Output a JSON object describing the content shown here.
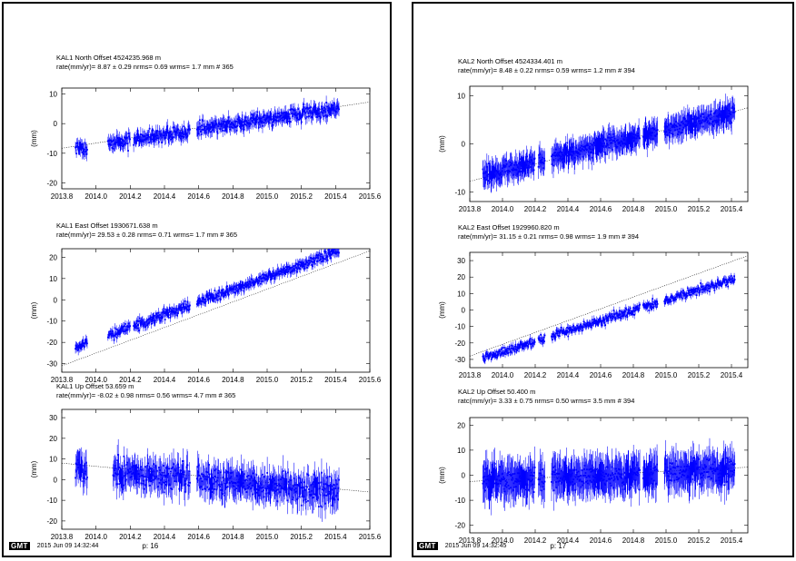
{
  "panels": [
    {
      "footer": {
        "logo": "GMT",
        "timestamp": "2015 Jun 09 14:32:44",
        "page": "p: 16"
      },
      "charts": [
        {
          "line1": "KAL1  North Offset   4524235.968 m",
          "line2": "rate(mm/yr)=    8.87 ±  0.29  nrms=  0.69  wrms=   1.7 mm # 365"
        },
        {
          "line1": "KAL1  East Offset   1930671.638 m",
          "line2": "rate(mm/yr)=   29.53 ±  0.28  nrms=  0.71  wrms=   1.7 mm # 365"
        },
        {
          "line1": "KAL1  Up Offset        53.659 m",
          "line2": "rate(mm/yr)=   -8.02 ±  0.98  nrms= 0.56  wrms=   4.7 mm # 365"
        }
      ]
    },
    {
      "footer": {
        "logo": "GMT",
        "timestamp": "2015 Jun 09 14:32:45",
        "page": "p: 17"
      },
      "charts": [
        {
          "line1": "KAL2  North Offset   4524334.401 m",
          "line2": "rate(mm/yr)=    8.48 ±  0.22  nrms=  0.59  wrms=   1.2 mm # 394"
        },
        {
          "line1": "KAL2  East Offset   1929960.820 m",
          "line2": "rate(mm/yr)=   31.15 ±  0.21  nrms=  0.98  wrms=   1.9 mm # 394"
        },
        {
          "line1": "KAL2  Up Offset        50.400 m",
          "line2": "ratc(mm/yr)=    3.33 ±  0.75  nrms=  0.50  wrms=   3.5 mm # 394"
        }
      ]
    }
  ],
  "chart_data": [
    {
      "type": "scatter",
      "station": "KAL1",
      "component": "North",
      "ylabel": "(mm)",
      "xlim": [
        2013.8,
        2015.6
      ],
      "ylim": [
        -22,
        12
      ],
      "xticks": [
        2013.8,
        2014.0,
        2014.2,
        2014.4,
        2014.6,
        2014.8,
        2015.0,
        2015.2,
        2015.4,
        2015.6
      ],
      "yticks": [
        -20,
        -10,
        0,
        10
      ],
      "trend": {
        "x": [
          2013.8,
          2015.6
        ],
        "y": [
          -8.3,
          7.3
        ]
      },
      "segments": [
        [
          2013.88,
          2013.95
        ],
        [
          2014.07,
          2014.2
        ],
        [
          2014.22,
          2014.55
        ],
        [
          2014.59,
          2015.42
        ]
      ],
      "rate": 8.87,
      "offset": -2.0,
      "t0": 2014.6,
      "scatter": 1.7,
      "errbar": 2.0,
      "n": 365,
      "color": "#0000ff"
    },
    {
      "type": "scatter",
      "station": "KAL1",
      "component": "East",
      "ylabel": "(mm)",
      "xlim": [
        2013.8,
        2015.6
      ],
      "ylim": [
        -34,
        24
      ],
      "xticks": [
        2013.8,
        2014.0,
        2014.2,
        2014.4,
        2014.6,
        2014.8,
        2015.0,
        2015.2,
        2015.4,
        2015.6
      ],
      "yticks": [
        -30,
        -20,
        -10,
        0,
        10,
        20
      ],
      "trend": {
        "x": [
          2013.8,
          2015.6
        ],
        "y": [
          -31,
          23
        ]
      },
      "segments": [
        [
          2013.88,
          2013.95
        ],
        [
          2014.07,
          2014.2
        ],
        [
          2014.22,
          2014.55
        ],
        [
          2014.59,
          2015.42
        ]
      ],
      "rate": 29.53,
      "offset": -1.0,
      "t0": 2014.6,
      "scatter": 1.7,
      "errbar": 2.0,
      "n": 365,
      "color": "#0000ff"
    },
    {
      "type": "scatter",
      "station": "KAL1",
      "component": "Up",
      "ylabel": "(mm)",
      "xlim": [
        2013.8,
        2015.6
      ],
      "ylim": [
        -24,
        34
      ],
      "xticks": [
        2013.8,
        2014.0,
        2014.2,
        2014.4,
        2014.6,
        2014.8,
        2015.0,
        2015.2,
        2015.4,
        2015.6
      ],
      "yticks": [
        -20,
        -10,
        0,
        10,
        20,
        30
      ],
      "trend": {
        "x": [
          2013.8,
          2015.6
        ],
        "y": [
          8,
          -6
        ]
      },
      "segments": [
        [
          2013.88,
          2013.95
        ],
        [
          2014.1,
          2014.55
        ],
        [
          2014.59,
          2015.42
        ]
      ],
      "rate": -8.02,
      "offset": 0,
      "t0": 2014.6,
      "scatter": 4.7,
      "errbar": 6.0,
      "n": 365,
      "color": "#0000ff"
    },
    {
      "type": "scatter",
      "station": "KAL2",
      "component": "North",
      "ylabel": "(mm)",
      "xlim": [
        2013.8,
        2015.5
      ],
      "ylim": [
        -12,
        12
      ],
      "xticks": [
        2013.8,
        2014.0,
        2014.2,
        2014.4,
        2014.6,
        2014.8,
        2015.0,
        2015.2,
        2015.4
      ],
      "yticks": [
        -10,
        0,
        10
      ],
      "trend": {
        "x": [
          2013.8,
          2015.5
        ],
        "y": [
          -7.8,
          7.5
        ]
      },
      "segments": [
        [
          2013.88,
          2014.2
        ],
        [
          2014.22,
          2014.26
        ],
        [
          2014.3,
          2014.84
        ],
        [
          2014.86,
          2014.95
        ],
        [
          2014.99,
          2015.42
        ]
      ],
      "rate": 8.48,
      "offset": 0,
      "t0": 2014.65,
      "scatter": 1.2,
      "errbar": 2.2,
      "n": 394,
      "color": "#0000ff"
    },
    {
      "type": "scatter",
      "station": "KAL2",
      "component": "East",
      "ylabel": "(mm)",
      "xlim": [
        2013.8,
        2015.5
      ],
      "ylim": [
        -35,
        35
      ],
      "xticks": [
        2013.8,
        2014.0,
        2014.2,
        2014.4,
        2014.6,
        2014.8,
        2015.0,
        2015.2,
        2015.4
      ],
      "yticks": [
        -30,
        -20,
        -10,
        0,
        10,
        20,
        30
      ],
      "trend": {
        "x": [
          2013.8,
          2015.5
        ],
        "y": [
          -28,
          33
        ]
      },
      "segments": [
        [
          2013.88,
          2014.2
        ],
        [
          2014.22,
          2014.26
        ],
        [
          2014.3,
          2014.84
        ],
        [
          2014.86,
          2014.95
        ],
        [
          2014.99,
          2015.42
        ]
      ],
      "rate": 31.15,
      "offset": -5.0,
      "t0": 2014.65,
      "scatter": 1.9,
      "errbar": 2.0,
      "n": 394,
      "color": "#0000ff"
    },
    {
      "type": "scatter",
      "station": "KAL2",
      "component": "Up",
      "ylabel": "(mm)",
      "xlim": [
        2013.8,
        2015.5
      ],
      "ylim": [
        -23,
        23
      ],
      "xticks": [
        2013.8,
        2014.0,
        2014.2,
        2014.4,
        2014.6,
        2014.8,
        2015.0,
        2015.2,
        2015.4
      ],
      "yticks": [
        -20,
        -10,
        0,
        10,
        20
      ],
      "trend": {
        "x": [
          2013.8,
          2015.5
        ],
        "y": [
          -2.5,
          3.2
        ]
      },
      "segments": [
        [
          2013.88,
          2014.2
        ],
        [
          2014.22,
          2014.26
        ],
        [
          2014.3,
          2014.84
        ],
        [
          2014.86,
          2014.95
        ],
        [
          2014.99,
          2015.42
        ]
      ],
      "rate": 3.33,
      "offset": 0,
      "t0": 2014.65,
      "scatter": 3.5,
      "errbar": 6.5,
      "n": 394,
      "color": "#0000ff"
    }
  ]
}
